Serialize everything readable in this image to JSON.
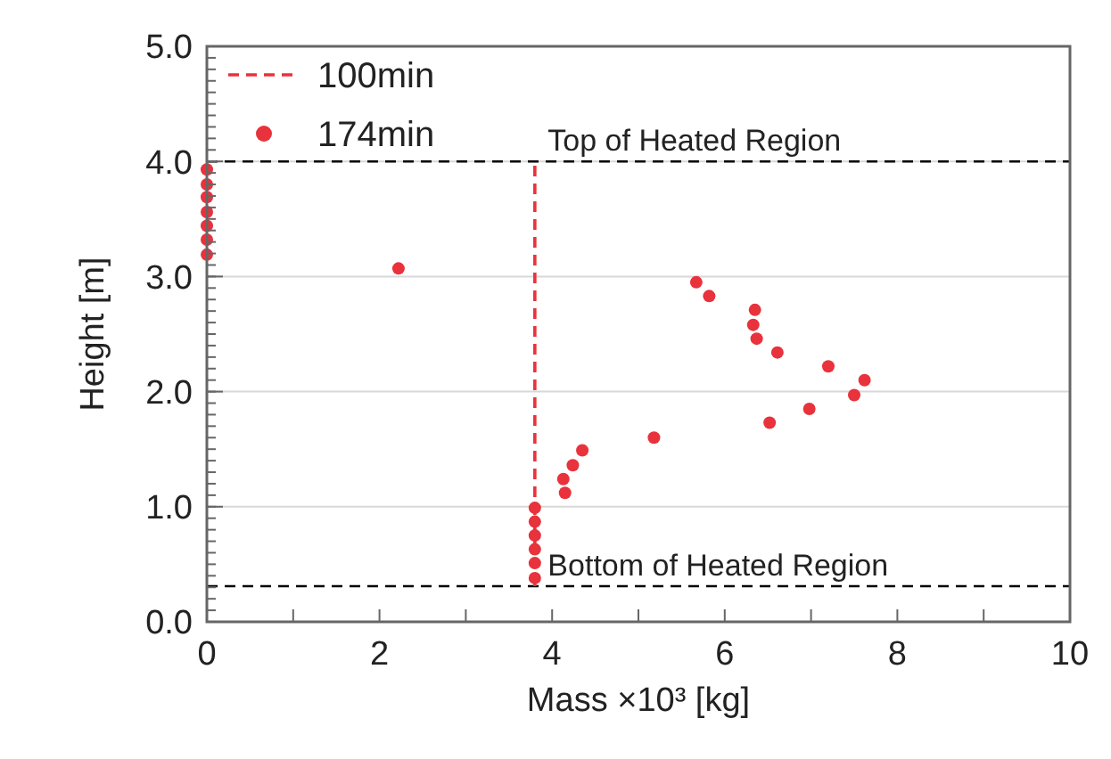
{
  "chart_data": {
    "type": "scatter",
    "xlabel": "Mass ×10³ [kg]",
    "ylabel": "Height [m]",
    "xlim": [
      0,
      10
    ],
    "xticks": [
      0,
      {
        "value": 1,
        "label": null
      },
      2,
      {
        "value": 3,
        "label": null
      },
      4,
      {
        "value": 5,
        "label": null
      },
      6,
      {
        "value": 7,
        "label": null
      },
      8,
      {
        "value": 9,
        "label": null
      },
      10
    ],
    "ylim": [
      0,
      5
    ],
    "yticks": [
      {
        "value": 0,
        "label": "0.0"
      },
      {
        "value": 1,
        "label": "1.0"
      },
      {
        "value": 2,
        "label": "2.0"
      },
      {
        "value": 3,
        "label": "3.0"
      },
      {
        "value": 4,
        "label": "4.0"
      },
      {
        "value": 5,
        "label": "5.0"
      }
    ],
    "grid": "y",
    "legend": "top left",
    "series": [
      {
        "name": "100min",
        "type": "line",
        "line_style": "dashed",
        "marker": "none",
        "color": "#e8323c",
        "x": [
          3.8,
          3.8
        ],
        "values": [
          0.31,
          4.0
        ]
      },
      {
        "name": "174min",
        "marker": "circle",
        "color": "#e8323c",
        "x": [
          0,
          0,
          0,
          0,
          0,
          0,
          0,
          2.22,
          3.8,
          3.8,
          3.8,
          3.8,
          3.8,
          3.8,
          4.13,
          4.15,
          4.24,
          4.35,
          5.18,
          5.67,
          5.82,
          6.35,
          6.33,
          6.37,
          6.61,
          7.2,
          7.62,
          7.5,
          6.98,
          6.52
        ],
        "values": [
          3.93,
          3.8,
          3.69,
          3.56,
          3.44,
          3.32,
          3.19,
          3.07,
          0.99,
          0.87,
          0.75,
          0.63,
          0.51,
          0.38,
          1.24,
          1.12,
          1.36,
          1.49,
          1.6,
          2.95,
          2.83,
          2.71,
          2.58,
          2.46,
          2.34,
          2.22,
          2.1,
          1.97,
          1.85,
          1.73
        ]
      }
    ],
    "ref_lines": [
      {
        "axis": "y",
        "value": 4.0,
        "label": "Top of Heated Region",
        "color": "#000000",
        "line_style": "dashed"
      },
      {
        "axis": "y",
        "value": 0.31,
        "label": "Bottom of Heated Region",
        "color": "#000000",
        "line_style": "dashed"
      }
    ]
  }
}
